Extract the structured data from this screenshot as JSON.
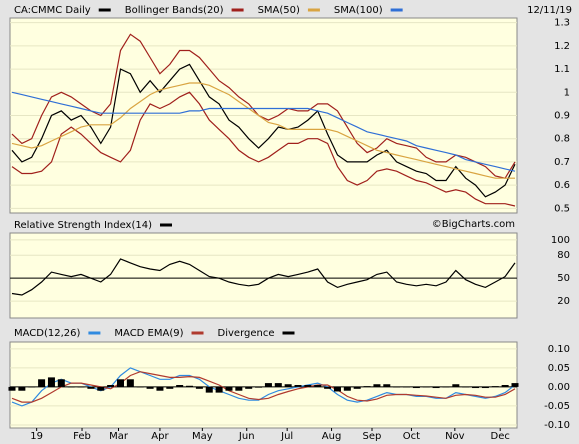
{
  "date": "12/11/19",
  "watermark": "©BigCharts.com",
  "chart_data": [
    {
      "type": "line",
      "series": [
        {
          "name": "CA:CMMC Daily",
          "color": "#000000",
          "values": [
            0.75,
            0.7,
            0.72,
            0.8,
            0.9,
            0.92,
            0.88,
            0.9,
            0.85,
            0.78,
            0.85,
            1.1,
            1.08,
            1.0,
            1.05,
            1.0,
            1.05,
            1.1,
            1.12,
            1.05,
            0.98,
            0.95,
            0.88,
            0.85,
            0.8,
            0.76,
            0.8,
            0.85,
            0.84,
            0.85,
            0.88,
            0.92,
            0.82,
            0.73,
            0.7,
            0.7,
            0.7,
            0.73,
            0.75,
            0.7,
            0.68,
            0.66,
            0.65,
            0.62,
            0.62,
            0.68,
            0.63,
            0.6,
            0.55,
            0.57,
            0.6,
            0.69
          ]
        },
        {
          "name": "Bollinger Bands(20)",
          "color": "#a0201c",
          "upper": [
            0.82,
            0.78,
            0.8,
            0.9,
            0.98,
            1.0,
            0.98,
            0.95,
            0.92,
            0.9,
            0.95,
            1.18,
            1.25,
            1.22,
            1.15,
            1.08,
            1.12,
            1.18,
            1.18,
            1.15,
            1.1,
            1.05,
            1.02,
            0.98,
            0.95,
            0.9,
            0.88,
            0.9,
            0.93,
            0.92,
            0.92,
            0.95,
            0.95,
            0.92,
            0.85,
            0.78,
            0.74,
            0.76,
            0.8,
            0.78,
            0.77,
            0.76,
            0.72,
            0.7,
            0.7,
            0.73,
            0.72,
            0.7,
            0.68,
            0.64,
            0.63,
            0.7
          ],
          "lower": [
            0.68,
            0.65,
            0.65,
            0.66,
            0.7,
            0.82,
            0.85,
            0.82,
            0.78,
            0.74,
            0.72,
            0.7,
            0.75,
            0.88,
            0.95,
            0.93,
            0.95,
            0.98,
            1.0,
            0.95,
            0.88,
            0.84,
            0.8,
            0.75,
            0.72,
            0.7,
            0.72,
            0.75,
            0.78,
            0.78,
            0.8,
            0.8,
            0.78,
            0.68,
            0.62,
            0.6,
            0.62,
            0.66,
            0.67,
            0.66,
            0.64,
            0.62,
            0.61,
            0.59,
            0.57,
            0.58,
            0.57,
            0.54,
            0.52,
            0.52,
            0.52,
            0.51
          ]
        },
        {
          "name": "SMA(50)",
          "color": "#d9a441",
          "values": [
            0.78,
            0.77,
            0.76,
            0.77,
            0.79,
            0.81,
            0.83,
            0.85,
            0.86,
            0.86,
            0.86,
            0.89,
            0.93,
            0.96,
            0.99,
            1.01,
            1.02,
            1.03,
            1.04,
            1.04,
            1.03,
            1.01,
            0.99,
            0.96,
            0.93,
            0.9,
            0.87,
            0.86,
            0.84,
            0.84,
            0.84,
            0.84,
            0.84,
            0.83,
            0.81,
            0.79,
            0.77,
            0.75,
            0.74,
            0.73,
            0.72,
            0.71,
            0.7,
            0.69,
            0.68,
            0.67,
            0.66,
            0.65,
            0.64,
            0.63,
            0.63,
            0.63
          ]
        },
        {
          "name": "SMA(100)",
          "color": "#2f6fd6",
          "values": [
            1.0,
            0.99,
            0.98,
            0.97,
            0.96,
            0.95,
            0.94,
            0.93,
            0.92,
            0.91,
            0.91,
            0.91,
            0.91,
            0.91,
            0.91,
            0.91,
            0.91,
            0.91,
            0.92,
            0.92,
            0.93,
            0.93,
            0.93,
            0.93,
            0.93,
            0.93,
            0.93,
            0.93,
            0.93,
            0.93,
            0.93,
            0.92,
            0.91,
            0.89,
            0.87,
            0.85,
            0.83,
            0.82,
            0.81,
            0.8,
            0.79,
            0.77,
            0.76,
            0.75,
            0.74,
            0.73,
            0.71,
            0.7,
            0.69,
            0.68,
            0.67,
            0.66
          ]
        }
      ],
      "ylim": [
        0.48,
        1.32
      ],
      "yticks": [
        0.5,
        0.6,
        0.7,
        0.8,
        0.9,
        1.0,
        1.1,
        1.2,
        1.3
      ],
      "grid": true
    },
    {
      "type": "line",
      "series": [
        {
          "name": "Relative Strength Index(14)",
          "color": "#000000",
          "values": [
            30,
            28,
            35,
            45,
            58,
            55,
            52,
            55,
            50,
            45,
            55,
            75,
            70,
            65,
            62,
            60,
            68,
            72,
            68,
            60,
            52,
            50,
            45,
            42,
            40,
            42,
            50,
            55,
            52,
            55,
            58,
            62,
            45,
            38,
            42,
            45,
            48,
            55,
            58,
            45,
            42,
            40,
            42,
            40,
            45,
            60,
            48,
            42,
            38,
            45,
            52,
            70
          ]
        }
      ],
      "ylim": [
        -2,
        109
      ],
      "yticks": [
        20,
        50,
        80,
        100
      ],
      "reference_line": 50,
      "grid": true
    },
    {
      "type": "line",
      "series": [
        {
          "name": "MACD(12,26)",
          "color": "#2f8ae0",
          "values": [
            -0.04,
            -0.05,
            -0.04,
            -0.01,
            0.01,
            0.02,
            0.01,
            0.01,
            0,
            -0.01,
            0,
            0.03,
            0.05,
            0.04,
            0.03,
            0.02,
            0.02,
            0.03,
            0.03,
            0.02,
            0,
            -0.01,
            -0.02,
            -0.03,
            -0.035,
            -0.035,
            -0.02,
            -0.01,
            -0.005,
            0,
            0.005,
            0.01,
            0,
            -0.02,
            -0.035,
            -0.04,
            -0.035,
            -0.025,
            -0.015,
            -0.02,
            -0.02,
            -0.025,
            -0.025,
            -0.03,
            -0.03,
            -0.015,
            -0.02,
            -0.025,
            -0.03,
            -0.025,
            -0.015,
            0.005
          ]
        },
        {
          "name": "MACD EMA(9)",
          "color": "#b03a2e",
          "values": [
            -0.03,
            -0.04,
            -0.04,
            -0.03,
            -0.015,
            0,
            0.01,
            0.01,
            0.005,
            0,
            -0.005,
            0.01,
            0.03,
            0.04,
            0.035,
            0.03,
            0.025,
            0.025,
            0.027,
            0.025,
            0.015,
            0.005,
            -0.01,
            -0.02,
            -0.03,
            -0.033,
            -0.03,
            -0.02,
            -0.012,
            -0.005,
            0,
            0.005,
            0.005,
            -0.008,
            -0.025,
            -0.035,
            -0.037,
            -0.032,
            -0.022,
            -0.02,
            -0.02,
            -0.022,
            -0.024,
            -0.027,
            -0.03,
            -0.022,
            -0.02,
            -0.022,
            -0.027,
            -0.027,
            -0.02,
            -0.005
          ]
        },
        {
          "name": "Divergence",
          "color": "#000000",
          "kind": "bar",
          "values": [
            -0.01,
            -0.01,
            0,
            0.02,
            0.025,
            0.02,
            0,
            0,
            -0.005,
            -0.01,
            0.005,
            0.02,
            0.02,
            0,
            -0.005,
            -0.01,
            -0.005,
            0.005,
            0.003,
            -0.005,
            -0.015,
            -0.015,
            -0.01,
            -0.01,
            -0.005,
            -0.002,
            0.01,
            0.01,
            0.007,
            0.005,
            0.005,
            0.005,
            -0.005,
            -0.012,
            -0.01,
            -0.005,
            0.002,
            0.007,
            0.007,
            0,
            0,
            -0.003,
            -0.001,
            -0.003,
            0,
            0.007,
            0,
            -0.003,
            -0.003,
            0.002,
            0.005,
            0.01
          ]
        }
      ],
      "ylim": [
        -0.108,
        0.118
      ],
      "yticks": [
        {
          "value": -0.1,
          "label": "-0.10"
        },
        {
          "value": -0.05,
          "label": "-0.05"
        },
        {
          "value": 0,
          "label": "0.00"
        },
        {
          "value": 0.05,
          "label": "0.05"
        },
        {
          "value": 0.1,
          "label": "0.10"
        }
      ],
      "reference_line": 0,
      "grid": true,
      "xlim": [
        0,
        51
      ],
      "xticks": [
        {
          "value": 2.5,
          "label": "19"
        },
        {
          "value": 7.1,
          "label": "Feb"
        },
        {
          "value": 10.8,
          "label": "Mar"
        },
        {
          "value": 15,
          "label": "Apr"
        },
        {
          "value": 19.3,
          "label": "May"
        },
        {
          "value": 23.8,
          "label": "Jun"
        },
        {
          "value": 27.9,
          "label": "Jul"
        },
        {
          "value": 32.4,
          "label": "Aug"
        },
        {
          "value": 36.5,
          "label": "Sep"
        },
        {
          "value": 40.5,
          "label": "Oct"
        },
        {
          "value": 44.9,
          "label": "Nov"
        },
        {
          "value": 49.5,
          "label": "Dec"
        }
      ]
    }
  ]
}
